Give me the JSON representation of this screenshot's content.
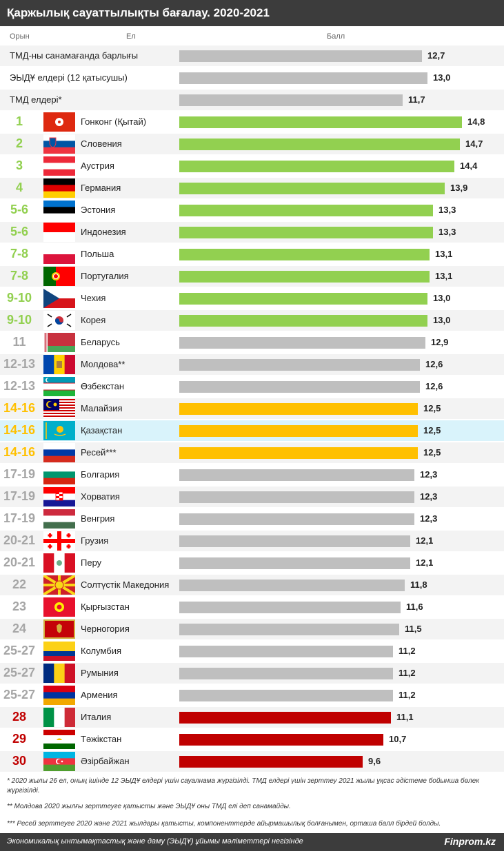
{
  "title": "Қаржылық сауаттылықты бағалау. 2020-2021",
  "headers": {
    "rank": "Орын",
    "country": "Ел",
    "score": "Балл"
  },
  "colors": {
    "green": "#92d050",
    "grey": "#bfbfbf",
    "gold": "#ffc000",
    "red": "#c00000",
    "highlight": "#d9f3fb",
    "rank_grey": "#a6a6a6"
  },
  "chart_data": {
    "type": "bar",
    "orientation": "horizontal",
    "categories": [
      "ТМД-ны санамағанда барлығы",
      "ЭЫДҰ елдері (12 қатысушы)",
      "ТМД елдері*",
      "Гонконг (Қытай)",
      "Словения",
      "Аустрия",
      "Германия",
      "Эстония",
      "Индонезия",
      "Польша",
      "Португалия",
      "Чехия",
      "Корея",
      "Беларусь",
      "Молдова**",
      "Өзбекстан",
      "Малайзия",
      "Қазақстан",
      "Ресей***",
      "Болгария",
      "Хорватия",
      "Венгрия",
      "Грузия",
      "Перу",
      "Солтүстік Македония",
      "Қырғызстан",
      "Черногория",
      "Колумбия",
      "Румыния",
      "Армения",
      "Италия",
      "Тәжікстан",
      "Әзірбайжан"
    ],
    "values": [
      12.7,
      13.0,
      11.7,
      14.8,
      14.7,
      14.4,
      13.9,
      13.3,
      13.3,
      13.1,
      13.1,
      13.0,
      13.0,
      12.9,
      12.6,
      12.6,
      12.5,
      12.5,
      12.5,
      12.3,
      12.3,
      12.3,
      12.1,
      12.1,
      11.8,
      11.6,
      11.5,
      11.2,
      11.2,
      11.2,
      11.1,
      10.7,
      9.6
    ],
    "labels": [
      "12,7",
      "13,0",
      "11,7",
      "14,8",
      "14,7",
      "14,4",
      "13,9",
      "13,3",
      "13,3",
      "13,1",
      "13,1",
      "13,0",
      "13,0",
      "12,9",
      "12,6",
      "12,6",
      "12,5",
      "12,5",
      "12,5",
      "12,3",
      "12,3",
      "12,3",
      "12,1",
      "12,1",
      "11,8",
      "11,6",
      "11,5",
      "11,2",
      "11,2",
      "11,2",
      "11,1",
      "10,7",
      "9,6"
    ],
    "ranks": [
      "",
      "",
      "",
      "1",
      "2",
      "3",
      "4",
      "5-6",
      "5-6",
      "7-8",
      "7-8",
      "9-10",
      "9-10",
      "11",
      "12-13",
      "12-13",
      "14-16",
      "14-16",
      "14-16",
      "17-19",
      "17-19",
      "17-19",
      "20-21",
      "20-21",
      "22",
      "23",
      "24",
      "25-27",
      "25-27",
      "25-27",
      "28",
      "29",
      "30"
    ],
    "groups": [
      "grey",
      "grey",
      "grey",
      "green",
      "green",
      "green",
      "green",
      "green",
      "green",
      "green",
      "green",
      "green",
      "green",
      "grey",
      "grey",
      "grey",
      "gold",
      "gold",
      "gold",
      "grey",
      "grey",
      "grey",
      "grey",
      "grey",
      "grey",
      "grey",
      "grey",
      "grey",
      "grey",
      "grey",
      "red",
      "red",
      "red"
    ],
    "flags": [
      "",
      "",
      "",
      "hongkong",
      "slovenia",
      "austria",
      "germany",
      "estonia",
      "indonesia",
      "poland",
      "portugal",
      "czechia",
      "korea",
      "belarus",
      "moldova",
      "uzbekistan",
      "malaysia",
      "kazakhstan",
      "russia",
      "bulgaria",
      "croatia",
      "hungary",
      "georgia",
      "peru",
      "north-macedonia",
      "kyrgyzstan",
      "montenegro",
      "colombia",
      "romania",
      "armenia",
      "italy",
      "tajikistan",
      "azerbaijan"
    ],
    "highlight_index": 17
  },
  "footnotes": [
    "* 2020 жылы 26 ел, оның ішінде 12 ЭЫДҰ елдері үшін сауалнама жүргізілді. ТМД елдері үшін зерттеу 2021 жылы ұқсас әдістеме бойынша бөлек жүргізілді.",
    "** Молдова 2020 жылғы зерттеуге қатысты және ЭЫДҰ оны ТМД елі деп санамайды.",
    "*** Ресей зерттеуге 2020 және 2021 жылдары қатысты, компоненттерде айырмашылық болғанымен, орташа балл бірдей болды."
  ],
  "footer": {
    "source": "Экономикалық ынтымақтастық және даму (ЭЫДҰ) ұйымы мәліметтері негізінде",
    "brand": "Finprom.kz"
  }
}
